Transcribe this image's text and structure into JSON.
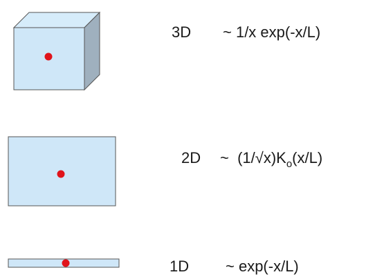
{
  "rows": [
    {
      "dimension": "3D",
      "formula": "~ 1/x exp(-x/L)"
    },
    {
      "dimension": "2D",
      "formula": {
        "main": "~  (1/√x)K",
        "subscript": "o",
        "tail": "(x/L)"
      }
    },
    {
      "dimension": "1D",
      "formula": "~ exp(-x/L)"
    }
  ]
}
